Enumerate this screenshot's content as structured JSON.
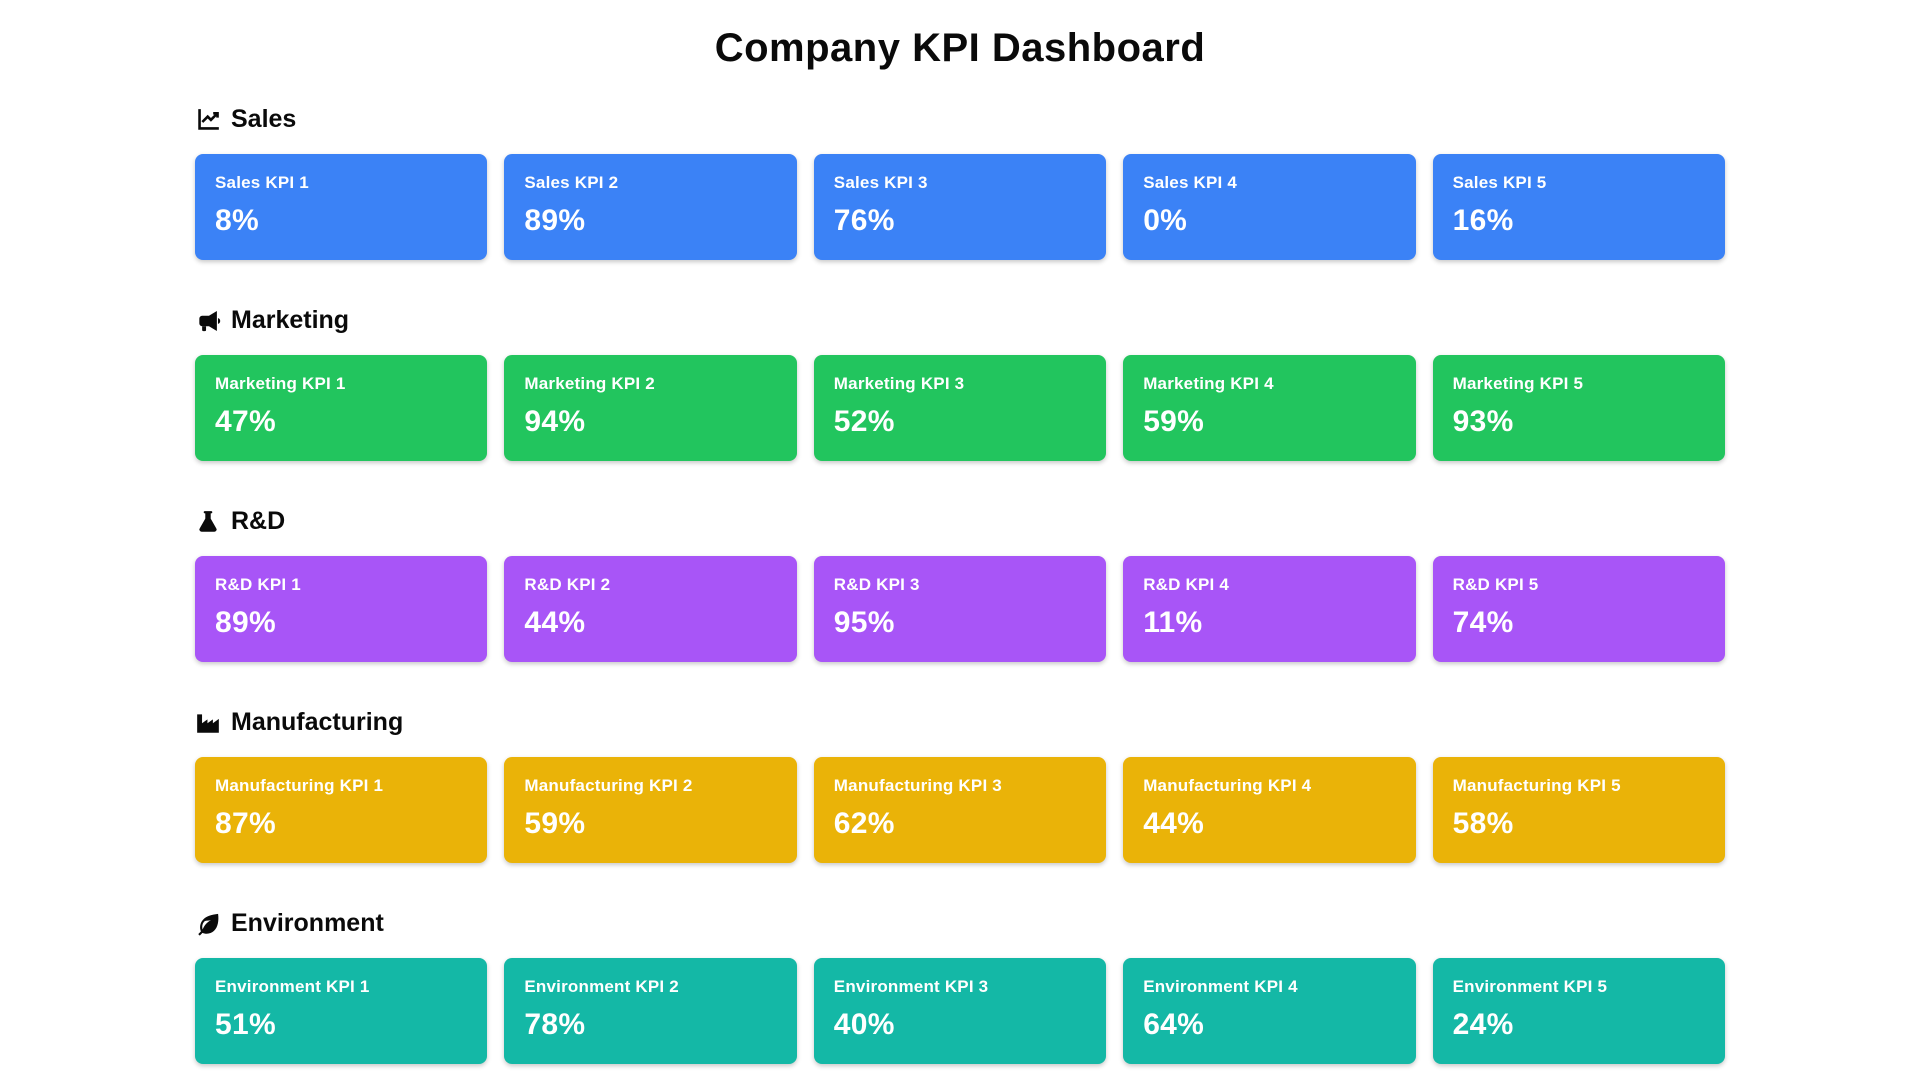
{
  "page": {
    "title": "Company KPI Dashboard"
  },
  "sections": [
    {
      "label": "Sales",
      "icon": "chart-line-icon",
      "color": "#3b82f6",
      "kpis": [
        {
          "label": "Sales KPI 1",
          "value": "8%"
        },
        {
          "label": "Sales KPI 2",
          "value": "89%"
        },
        {
          "label": "Sales KPI 3",
          "value": "76%"
        },
        {
          "label": "Sales KPI 4",
          "value": "0%"
        },
        {
          "label": "Sales KPI 5",
          "value": "16%"
        }
      ]
    },
    {
      "label": "Marketing",
      "icon": "megaphone-icon",
      "color": "#22c55e",
      "kpis": [
        {
          "label": "Marketing KPI 1",
          "value": "47%"
        },
        {
          "label": "Marketing KPI 2",
          "value": "94%"
        },
        {
          "label": "Marketing KPI 3",
          "value": "52%"
        },
        {
          "label": "Marketing KPI 4",
          "value": "59%"
        },
        {
          "label": "Marketing KPI 5",
          "value": "93%"
        }
      ]
    },
    {
      "label": "R&D",
      "icon": "flask-icon",
      "color": "#a855f7",
      "kpis": [
        {
          "label": "R&D KPI 1",
          "value": "89%"
        },
        {
          "label": "R&D KPI 2",
          "value": "44%"
        },
        {
          "label": "R&D KPI 3",
          "value": "95%"
        },
        {
          "label": "R&D KPI 4",
          "value": "11%"
        },
        {
          "label": "R&D KPI 5",
          "value": "74%"
        }
      ]
    },
    {
      "label": "Manufacturing",
      "icon": "factory-icon",
      "color": "#eab308",
      "kpis": [
        {
          "label": "Manufacturing KPI 1",
          "value": "87%"
        },
        {
          "label": "Manufacturing KPI 2",
          "value": "59%"
        },
        {
          "label": "Manufacturing KPI 3",
          "value": "62%"
        },
        {
          "label": "Manufacturing KPI 4",
          "value": "44%"
        },
        {
          "label": "Manufacturing KPI 5",
          "value": "58%"
        }
      ]
    },
    {
      "label": "Environment",
      "icon": "leaf-icon",
      "color": "#14b8a6",
      "kpis": [
        {
          "label": "Environment KPI 1",
          "value": "51%"
        },
        {
          "label": "Environment KPI 2",
          "value": "78%"
        },
        {
          "label": "Environment KPI 3",
          "value": "40%"
        },
        {
          "label": "Environment KPI 4",
          "value": "64%"
        },
        {
          "label": "Environment KPI 5",
          "value": "24%"
        }
      ]
    }
  ]
}
